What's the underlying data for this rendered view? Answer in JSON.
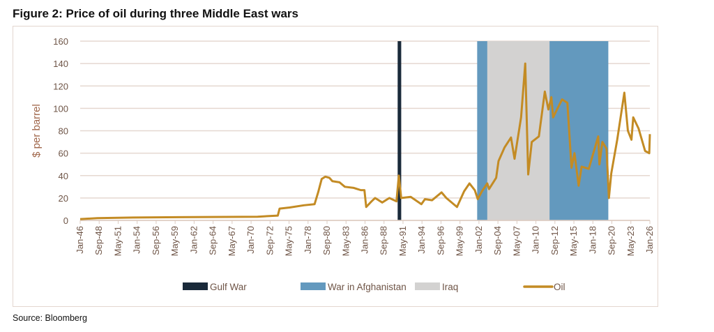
{
  "title": "Figure 2: Price of oil during three Middle East wars",
  "source": "Source: Bloomberg",
  "chart_data": {
    "type": "line",
    "title": "Figure 2: Price of oil during three Middle East wars",
    "ylabel": "$ per barrel",
    "xlabel": "",
    "ylim": [
      0,
      160
    ],
    "yticks": [
      0,
      20,
      40,
      60,
      80,
      100,
      120,
      140,
      160
    ],
    "xlim": [
      "1946-01",
      "2026-01"
    ],
    "xticks": [
      "Jan-46",
      "Sep-48",
      "May-51",
      "Jan-54",
      "Sep-56",
      "May-59",
      "Jan-62",
      "Sep-64",
      "May-67",
      "Jan-70",
      "Sep-72",
      "May-75",
      "Jan-78",
      "Sep-80",
      "May-83",
      "Jan-86",
      "Sep-88",
      "May-91",
      "Jan-94",
      "Sep-96",
      "May-99",
      "Jan-02",
      "Sep-04",
      "May-07",
      "Jan-10",
      "Sep-12",
      "May-15",
      "Jan-18",
      "Sep-20",
      "May-23",
      "Jan-26"
    ],
    "grid": "horizontal",
    "legend": "bottom",
    "bands": [
      {
        "name": "Gulf War",
        "color": "#1a2a3a",
        "start": "1990-08",
        "end": "1991-02"
      },
      {
        "name": "War in Afghanistan",
        "color": "#6399be",
        "start": "2001-10",
        "end": "2020-03"
      },
      {
        "name": "Iraq",
        "color": "#d3d2d1",
        "start": "2003-03",
        "end": "2011-12"
      }
    ],
    "series": [
      {
        "name": "Oil",
        "color": "#c38b24",
        "points": [
          [
            "1946-01",
            1.2
          ],
          [
            "1948-06",
            2.0
          ],
          [
            "1953-06",
            2.6
          ],
          [
            "1970-12",
            3.3
          ],
          [
            "1973-10",
            4.3
          ],
          [
            "1974-01",
            10.5
          ],
          [
            "1975-06",
            11.5
          ],
          [
            "1977-06",
            13.5
          ],
          [
            "1978-12",
            14.5
          ],
          [
            "1979-06",
            25
          ],
          [
            "1979-12",
            37
          ],
          [
            "1980-06",
            39
          ],
          [
            "1981-01",
            38
          ],
          [
            "1981-06",
            35
          ],
          [
            "1982-06",
            34
          ],
          [
            "1983-03",
            30
          ],
          [
            "1984-06",
            29
          ],
          [
            "1985-06",
            27
          ],
          [
            "1985-12",
            27
          ],
          [
            "1986-03",
            12
          ],
          [
            "1986-12",
            17
          ],
          [
            "1987-06",
            20
          ],
          [
            "1988-06",
            16
          ],
          [
            "1989-06",
            20
          ],
          [
            "1990-06",
            17
          ],
          [
            "1990-10",
            40
          ],
          [
            "1991-02",
            20
          ],
          [
            "1992-06",
            21
          ],
          [
            "1993-12",
            14.5
          ],
          [
            "1994-06",
            19
          ],
          [
            "1995-06",
            18
          ],
          [
            "1996-10",
            25
          ],
          [
            "1997-06",
            20
          ],
          [
            "1998-12",
            12
          ],
          [
            "1999-12",
            26
          ],
          [
            "2000-09",
            33
          ],
          [
            "2001-06",
            27
          ],
          [
            "2001-11",
            19
          ],
          [
            "2002-06",
            26
          ],
          [
            "2003-03",
            33
          ],
          [
            "2003-06",
            28
          ],
          [
            "2004-06",
            38
          ],
          [
            "2004-10",
            53
          ],
          [
            "2005-08",
            65
          ],
          [
            "2006-07",
            74
          ],
          [
            "2007-01",
            55
          ],
          [
            "2007-12",
            92
          ],
          [
            "2008-07",
            140
          ],
          [
            "2008-12",
            41
          ],
          [
            "2009-06",
            70
          ],
          [
            "2010-06",
            75
          ],
          [
            "2011-04",
            115
          ],
          [
            "2011-10",
            99
          ],
          [
            "2012-03",
            110
          ],
          [
            "2012-06",
            92
          ],
          [
            "2013-09",
            108
          ],
          [
            "2014-06",
            105
          ],
          [
            "2015-01",
            47
          ],
          [
            "2015-06",
            60
          ],
          [
            "2016-01",
            31
          ],
          [
            "2016-06",
            48
          ],
          [
            "2017-06",
            46
          ],
          [
            "2018-10",
            75
          ],
          [
            "2018-12",
            50
          ],
          [
            "2019-05",
            70
          ],
          [
            "2019-12",
            64
          ],
          [
            "2020-04",
            20
          ],
          [
            "2020-08",
            42
          ],
          [
            "2021-06",
            72
          ],
          [
            "2022-06",
            114
          ],
          [
            "2022-12",
            80
          ],
          [
            "2023-06",
            72
          ],
          [
            "2023-09",
            92
          ],
          [
            "2024-06",
            82
          ],
          [
            "2025-05",
            62
          ],
          [
            "2025-12",
            60
          ],
          [
            "2026-01",
            77
          ]
        ]
      }
    ],
    "legend_entries": [
      "Gulf War",
      "War in Afghanistan",
      "Iraq",
      "Oil"
    ]
  }
}
